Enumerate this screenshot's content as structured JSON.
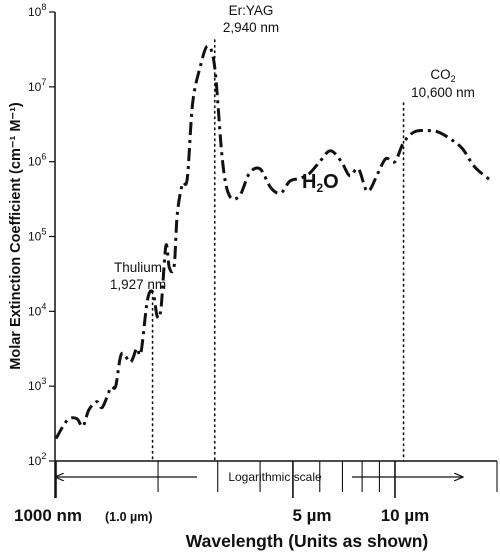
{
  "chart_data": {
    "type": "line",
    "title": "",
    "ylabel": "Molar Extinction Coefficient (cm⁻¹ M⁻¹)",
    "xlabel": "Wavelength (Units as shown)",
    "y_scale": "log",
    "ylim": [
      100,
      100000000
    ],
    "x_scale": "log",
    "xlim_nm": [
      1000,
      20000
    ],
    "y_ticks": [
      {
        "value": 100,
        "base": "10",
        "exp": "2"
      },
      {
        "value": 1000,
        "base": "10",
        "exp": "3"
      },
      {
        "value": 10000,
        "base": "10",
        "exp": "4"
      },
      {
        "value": 100000,
        "base": "10",
        "exp": "5"
      },
      {
        "value": 1000000,
        "base": "10",
        "exp": "6"
      },
      {
        "value": 10000000,
        "base": "10",
        "exp": "7"
      },
      {
        "value": 100000000,
        "base": "10",
        "exp": "8"
      }
    ],
    "x_labels": [
      {
        "nm": 1000,
        "text": "1000 nm"
      },
      {
        "nm": 1000,
        "text": "(1.0 µm)"
      },
      {
        "nm": 5000,
        "text": "5 µm"
      },
      {
        "nm": 10000,
        "text": "10 µm"
      }
    ],
    "scale_note": "Logarithmic scale",
    "water_label": {
      "main": "H",
      "sub": "2",
      "tail": "O"
    },
    "annotations": [
      {
        "line1": "Thulium",
        "line2": "1,927 nm",
        "nm": 1927
      },
      {
        "line1": "Er:YAG",
        "line2": "2,940 nm",
        "nm": 2940
      },
      {
        "line1": "CO",
        "line1_sub": "2",
        "line2": "10,600 nm",
        "nm": 10600
      }
    ],
    "series": [
      {
        "x": [
          1000,
          1080,
          1150,
          1200,
          1250,
          1320,
          1370,
          1450,
          1500,
          1560,
          1660,
          1730,
          1780,
          1860,
          1930,
          1990,
          2040,
          2110,
          2160,
          2230,
          2280,
          2360,
          2440,
          2530,
          2660,
          2800,
          2940,
          3100,
          3250,
          3480,
          3720,
          4000,
          4300,
          4600,
          4900,
          5250,
          5600,
          6000,
          6450,
          6950,
          7350,
          7800,
          8300,
          8900,
          9400,
          10000,
          10600,
          11400,
          12400,
          13400,
          14600,
          15800,
          17000,
          18000,
          19300
        ],
        "y": [
          200,
          350,
          370,
          290,
          480,
          620,
          520,
          950,
          1000,
          2700,
          2100,
          3200,
          2800,
          14000,
          18000,
          8500,
          11000,
          75000,
          38000,
          40000,
          200000,
          500000,
          600000,
          6000000,
          18000000,
          35000000,
          18000000,
          1000000,
          350000,
          350000,
          700000,
          800000,
          450000,
          380000,
          550000,
          600000,
          700000,
          1000000,
          1400000,
          1000000,
          650000,
          800000,
          400000,
          700000,
          1100000,
          1000000,
          1800000,
          2500000,
          2600000,
          2500000,
          2000000,
          1500000,
          900000,
          700000,
          550000
        ]
      }
    ]
  }
}
